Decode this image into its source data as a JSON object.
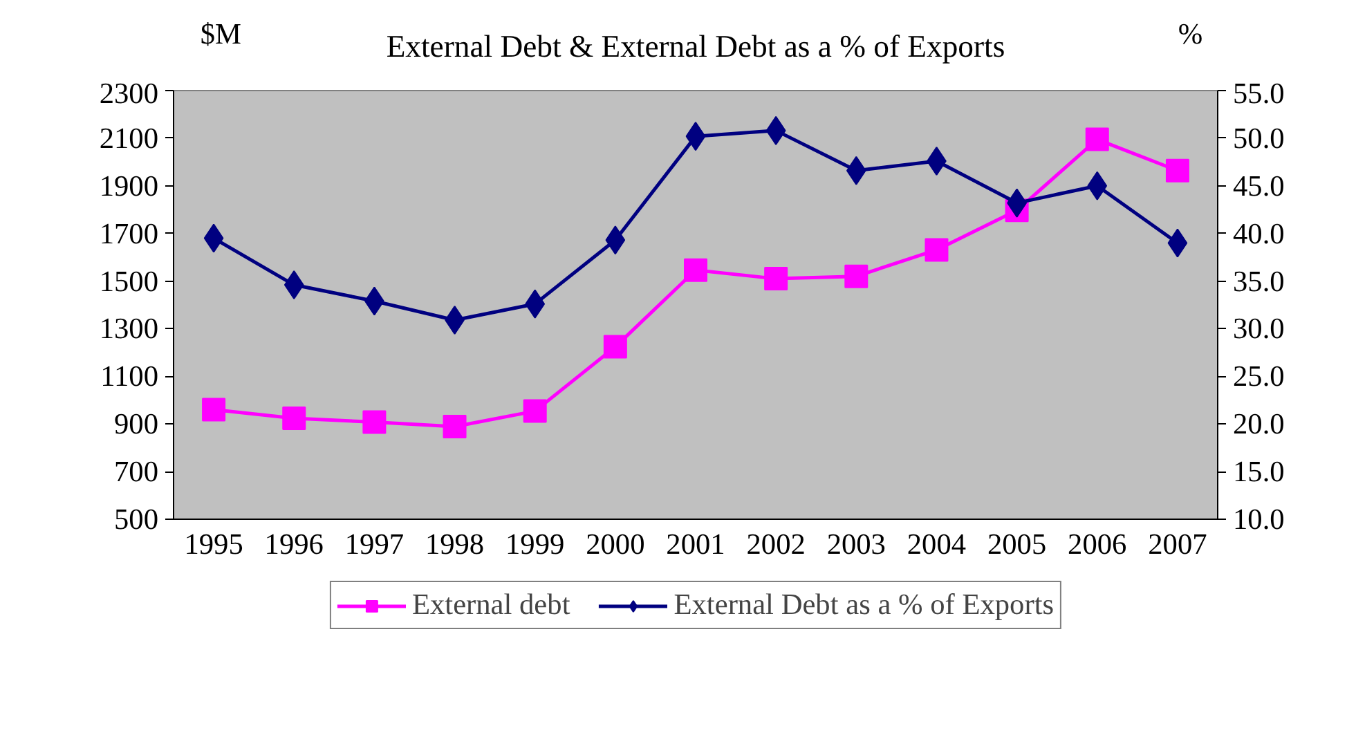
{
  "chart_data": {
    "type": "line",
    "title": "External Debt & External Debt as a % of Exports",
    "ylabel": "$M",
    "y2label": "%",
    "categories": [
      "1995",
      "1996",
      "1997",
      "1998",
      "1999",
      "2000",
      "2001",
      "2002",
      "2003",
      "2004",
      "2005",
      "2006",
      "2007"
    ],
    "series": [
      {
        "name": "External debt",
        "color": "#ff00ff",
        "marker": "square",
        "values": [
          960,
          924,
          908,
          889,
          954,
          1224,
          1546,
          1510,
          1520,
          1631,
          1797,
          2095,
          1964
        ]
      },
      {
        "name": "External Debt as a % of Exports",
        "color": "#000080",
        "marker": "diamond",
        "axis": "y2",
        "values": [
          39.5,
          34.6,
          32.9,
          30.9,
          32.6,
          39.3,
          50.2,
          50.8,
          46.6,
          47.6,
          43.2,
          45.0,
          39.0
        ]
      }
    ],
    "ylim": [
      500,
      2300
    ],
    "yticks": [
      500,
      700,
      900,
      1100,
      1300,
      1500,
      1700,
      1900,
      2100,
      2300
    ],
    "y2lim": [
      10,
      55
    ],
    "y2ticks": [
      {
        "value": 10,
        "label": "10.0"
      },
      {
        "value": 15,
        "label": "15.0"
      },
      {
        "value": 20,
        "label": "20.0"
      },
      {
        "value": 25,
        "label": "25.0"
      },
      {
        "value": 30,
        "label": "30.0"
      },
      {
        "value": 35,
        "label": "35.0"
      },
      {
        "value": 40,
        "label": "40.0"
      },
      {
        "value": 45,
        "label": "45.0"
      },
      {
        "value": 50,
        "label": "50.0"
      },
      {
        "value": 55,
        "label": "55.0"
      }
    ],
    "grid": false,
    "legend": "bottom"
  }
}
